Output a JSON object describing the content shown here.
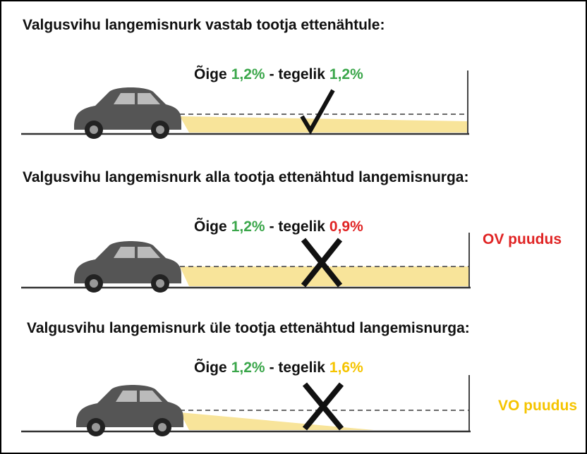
{
  "panels": [
    {
      "heading": "Valgusvihu langemisnurk vastab tootja ettenähtule:",
      "correct_label": "Õige",
      "correct_value": "1,2%",
      "actual_label": "- tegelik",
      "actual_value": "1,2%"
    },
    {
      "heading": "Valgusvihu langemisnurk alla tootja ettenähtud langemisnurga:",
      "correct_label": "Õige",
      "correct_value": "1,2%",
      "actual_label": "- tegelik",
      "actual_value": "0,9%",
      "status": "OV puudus"
    },
    {
      "heading": "Valgusvihu langemisnurk üle tootja ettenähtud langemisnurga:",
      "correct_label": "Õige",
      "correct_value": "1,2%",
      "actual_label": "- tegelik",
      "actual_value": "1,6%",
      "status": "VO puudus"
    }
  ]
}
